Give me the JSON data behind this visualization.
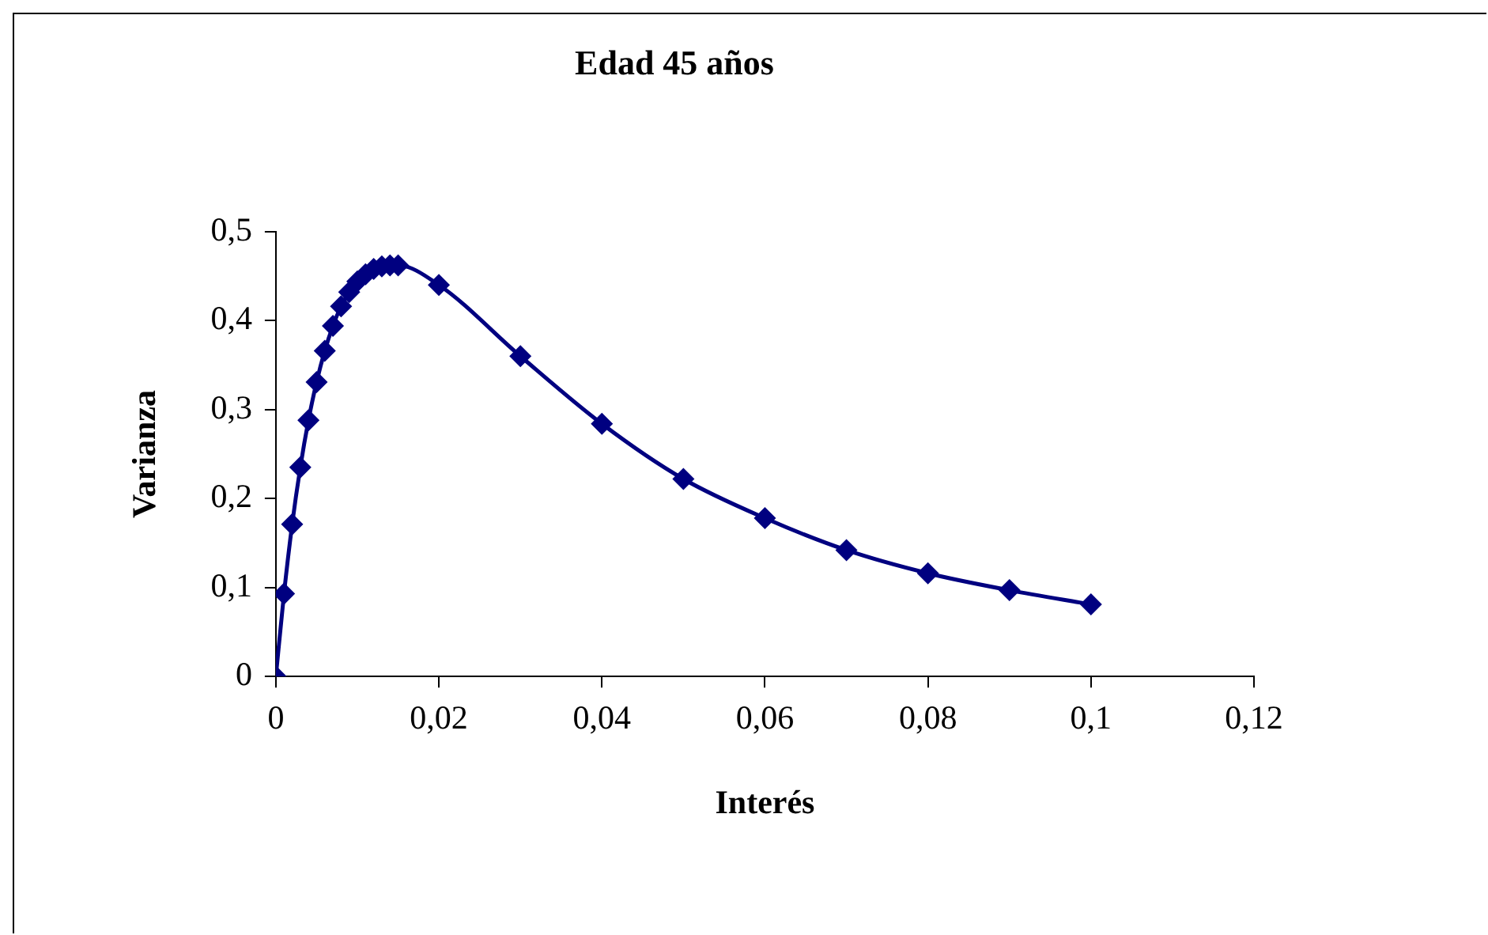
{
  "chart_data": {
    "type": "line",
    "title": "Edad 45 años",
    "xlabel": "Interés",
    "ylabel": "Varianza",
    "x": [
      0,
      0.001,
      0.002,
      0.003,
      0.004,
      0.005,
      0.006,
      0.007,
      0.008,
      0.009,
      0.01,
      0.011,
      0.012,
      0.013,
      0.014,
      0.015,
      0.02,
      0.03,
      0.04,
      0.05,
      0.06,
      0.07,
      0.08,
      0.09,
      0.1
    ],
    "series": [
      {
        "color": "#000080",
        "values": [
          0,
          0.093,
          0.171,
          0.235,
          0.288,
          0.331,
          0.366,
          0.394,
          0.416,
          0.432,
          0.444,
          0.452,
          0.458,
          0.461,
          0.462,
          0.462,
          0.44,
          0.36,
          0.284,
          0.222,
          0.178,
          0.142,
          0.116,
          0.097,
          0.081
        ]
      }
    ],
    "xlim": [
      0,
      0.12
    ],
    "xticks": [
      0,
      {
        "value": 0.02,
        "label": "0,02"
      },
      {
        "value": 0.04,
        "label": "0,04"
      },
      {
        "value": 0.06,
        "label": "0,06"
      },
      {
        "value": 0.08,
        "label": "0,08"
      },
      {
        "value": 0.1,
        "label": "0,1"
      },
      {
        "value": 0.12,
        "label": "0,12"
      }
    ],
    "ylim": [
      0,
      0.5
    ],
    "yticks": [
      0,
      {
        "value": 0.1,
        "label": "0,1"
      },
      {
        "value": 0.2,
        "label": "0,2"
      },
      {
        "value": 0.3,
        "label": "0,3"
      },
      {
        "value": 0.4,
        "label": "0,4"
      },
      {
        "value": 0.5,
        "label": "0,5"
      }
    ],
    "grid": false,
    "legend": false,
    "marker": "diamond",
    "line_style": "solid"
  }
}
